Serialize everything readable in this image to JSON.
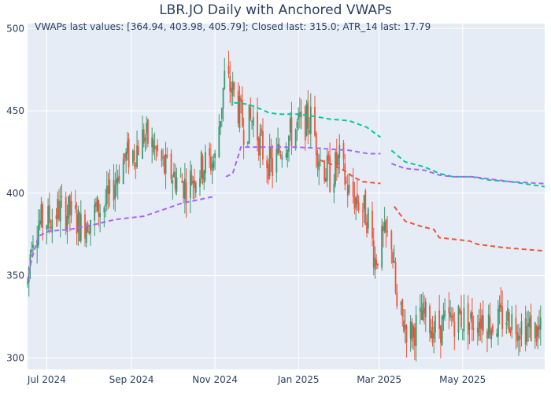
{
  "chart_data": {
    "type": "candlestick",
    "title": "LBR.JO Daily with Anchored VWAPs",
    "annotation": "VWAPs last values: [364.94, 403.98, 405.79]; Closed last: 315.0; ATR_14 last: 17.79",
    "xlabel": "",
    "ylabel": "",
    "x_range": [
      "2024-06-17",
      "2025-06-30"
    ],
    "ylim": [
      293,
      503
    ],
    "y_ticks": [
      300,
      350,
      400,
      450,
      500
    ],
    "x_ticks": [
      {
        "date": "2024-07-01",
        "label": "Jul 2024"
      },
      {
        "date": "2024-09-01",
        "label": "Sep 2024"
      },
      {
        "date": "2024-11-01",
        "label": "Nov 2024"
      },
      {
        "date": "2025-01-01",
        "label": "Jan 2025"
      },
      {
        "date": "2025-03-01",
        "label": "Mar 2025"
      },
      {
        "date": "2025-05-01",
        "label": "May 2025"
      }
    ],
    "grid": true,
    "colors": {
      "up": "#3D9970",
      "down": "#EF553B",
      "plot_bg": "#E5ECF6",
      "grid": "#ffffff",
      "vwap1": "#EF553B",
      "vwap2": "#00CC96",
      "vwap3": "#AB63FA"
    },
    "price_path": [
      [
        "2024-06-17",
        345
      ],
      [
        "2024-06-20",
        375
      ],
      [
        "2024-06-25",
        382
      ],
      [
        "2024-07-03",
        384
      ],
      [
        "2024-07-10",
        390
      ],
      [
        "2024-07-18",
        388
      ],
      [
        "2024-07-26",
        380
      ],
      [
        "2024-08-05",
        388
      ],
      [
        "2024-08-15",
        395
      ],
      [
        "2024-08-25",
        420
      ],
      [
        "2024-09-03",
        425
      ],
      [
        "2024-09-10",
        435
      ],
      [
        "2024-09-17",
        428
      ],
      [
        "2024-09-25",
        415
      ],
      [
        "2024-10-03",
        410
      ],
      [
        "2024-10-10",
        405
      ],
      [
        "2024-10-18",
        412
      ],
      [
        "2024-10-25",
        418
      ],
      [
        "2024-11-01",
        420
      ],
      [
        "2024-11-08",
        470
      ],
      [
        "2024-11-15",
        460
      ],
      [
        "2024-11-22",
        440
      ],
      [
        "2024-11-29",
        445
      ],
      [
        "2024-12-06",
        425
      ],
      [
        "2024-12-13",
        415
      ],
      [
        "2024-12-20",
        430
      ],
      [
        "2024-12-31",
        440
      ],
      [
        "2025-01-10",
        445
      ],
      [
        "2025-01-17",
        420
      ],
      [
        "2025-01-24",
        410
      ],
      [
        "2025-01-31",
        420
      ],
      [
        "2025-02-07",
        400
      ],
      [
        "2025-02-14",
        395
      ],
      [
        "2025-02-21",
        385
      ],
      [
        "2025-02-26",
        360
      ],
      [
        "2025-03-04",
        372
      ],
      [
        "2025-03-10",
        372
      ],
      [
        "2025-03-14",
        328
      ],
      [
        "2025-03-24",
        315
      ],
      [
        "2025-04-03",
        325
      ],
      [
        "2025-04-10",
        318
      ],
      [
        "2025-04-17",
        320
      ],
      [
        "2025-04-28",
        325
      ],
      [
        "2025-05-07",
        322
      ],
      [
        "2025-05-15",
        325
      ],
      [
        "2025-05-23",
        320
      ],
      [
        "2025-06-02",
        325
      ],
      [
        "2025-06-12",
        320
      ],
      [
        "2025-06-27",
        315
      ]
    ],
    "vwap_series": [
      {
        "color": "#EF553B",
        "segments": [
          [
            [
              "2025-01-17",
              420
            ],
            [
              "2025-01-24",
              418
            ],
            [
              "2025-02-03",
              414
            ],
            [
              "2025-02-10",
              410
            ],
            [
              "2025-02-17",
              407
            ],
            [
              "2025-02-28",
              406
            ],
            [
              "2025-03-02",
              406
            ]
          ],
          [
            [
              "2025-03-12",
              392
            ],
            [
              "2025-03-20",
              383
            ],
            [
              "2025-03-31",
              380
            ],
            [
              "2025-04-10",
              378
            ],
            [
              "2025-04-14",
              373
            ],
            [
              "2025-04-25",
              372
            ],
            [
              "2025-05-06",
              371
            ],
            [
              "2025-05-12",
              369
            ],
            [
              "2025-05-31",
              367
            ],
            [
              "2025-06-30",
              364.94
            ]
          ]
        ]
      },
      {
        "color": "#00CC96",
        "segments": [
          [
            [
              "2024-11-15",
              455
            ],
            [
              "2024-11-25",
              454
            ],
            [
              "2024-12-02",
              452
            ],
            [
              "2024-12-10",
              449
            ],
            [
              "2024-12-17",
              448
            ],
            [
              "2024-12-31",
              448
            ],
            [
              "2025-01-10",
              447
            ],
            [
              "2025-01-24",
              445
            ],
            [
              "2025-02-07",
              444
            ],
            [
              "2025-02-20",
              440
            ],
            [
              "2025-03-02",
              434
            ]
          ],
          [
            [
              "2025-03-10",
              426
            ],
            [
              "2025-03-20",
              419
            ],
            [
              "2025-04-03",
              416
            ],
            [
              "2025-04-14",
              412
            ],
            [
              "2025-04-24",
              410
            ],
            [
              "2025-05-08",
              410
            ],
            [
              "2025-05-20",
              408
            ],
            [
              "2025-06-05",
              407
            ],
            [
              "2025-06-30",
              403.98
            ]
          ]
        ]
      },
      {
        "color": "#AB63FA",
        "segments": [
          [
            [
              "2024-06-17",
              347
            ],
            [
              "2024-06-20",
              360
            ],
            [
              "2024-06-25",
              374
            ],
            [
              "2024-07-03",
              377
            ],
            [
              "2024-07-18",
              378
            ],
            [
              "2024-08-05",
              381
            ],
            [
              "2024-08-20",
              384
            ],
            [
              "2024-09-10",
              386
            ],
            [
              "2024-09-24",
              390
            ],
            [
              "2024-10-08",
              394
            ],
            [
              "2024-10-20",
              396
            ],
            [
              "2024-10-31",
              398
            ],
            [
              "2024-11-01",
              399
            ]
          ],
          [
            [
              "2024-11-09",
              410
            ],
            [
              "2024-11-14",
              412
            ],
            [
              "2024-11-20",
              428
            ],
            [
              "2024-12-06",
              428
            ],
            [
              "2024-12-31",
              428
            ],
            [
              "2025-01-20",
              427
            ],
            [
              "2025-02-07",
              426
            ],
            [
              "2025-02-21",
              424
            ],
            [
              "2025-03-02",
              424
            ]
          ],
          [
            [
              "2025-03-10",
              418
            ],
            [
              "2025-03-20",
              415
            ],
            [
              "2025-04-03",
              414
            ],
            [
              "2025-04-14",
              411
            ],
            [
              "2025-04-24",
              410
            ],
            [
              "2025-05-08",
              410
            ],
            [
              "2025-06-05",
              407
            ],
            [
              "2025-06-30",
              405.79
            ]
          ]
        ]
      }
    ]
  }
}
